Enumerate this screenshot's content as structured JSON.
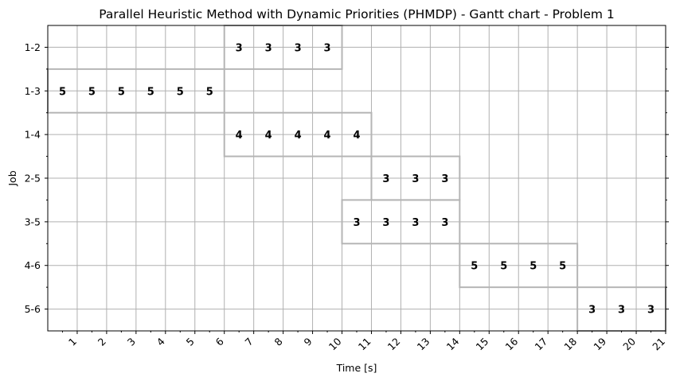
{
  "chart_data": {
    "type": "gantt",
    "title": "Parallel Heuristic Method with Dynamic Priorities (PHMDP) - Gantt chart - Problem 1",
    "xlabel": "Time [s]",
    "ylabel": "Job",
    "x_ticks": [
      "1",
      "2",
      "3",
      "4",
      "5",
      "6",
      "7",
      "8",
      "9",
      "10",
      "11",
      "12",
      "13",
      "14",
      "15",
      "16",
      "17",
      "18",
      "19",
      "20",
      "21"
    ],
    "xlim": [
      0,
      21
    ],
    "grid": true,
    "jobs": [
      {
        "name": "1-2",
        "start": 6,
        "end": 10,
        "values": [
          3,
          3,
          3,
          3
        ]
      },
      {
        "name": "1-3",
        "start": 0,
        "end": 6,
        "values": [
          5,
          5,
          5,
          5,
          5,
          5
        ]
      },
      {
        "name": "1-4",
        "start": 6,
        "end": 11,
        "values": [
          4,
          4,
          4,
          4,
          4
        ]
      },
      {
        "name": "2-5",
        "start": 11,
        "end": 14,
        "values": [
          3,
          3,
          3
        ]
      },
      {
        "name": "3-5",
        "start": 10,
        "end": 14,
        "values": [
          3,
          3,
          3,
          3
        ]
      },
      {
        "name": "4-6",
        "start": 14,
        "end": 18,
        "values": [
          5,
          5,
          5,
          5
        ]
      },
      {
        "name": "5-6",
        "start": 18,
        "end": 21,
        "values": [
          3,
          3,
          3
        ]
      }
    ],
    "colors": {
      "grid": "#b0b0b0",
      "bar_edge": "#b5b5b5",
      "axis": "#000000"
    }
  }
}
